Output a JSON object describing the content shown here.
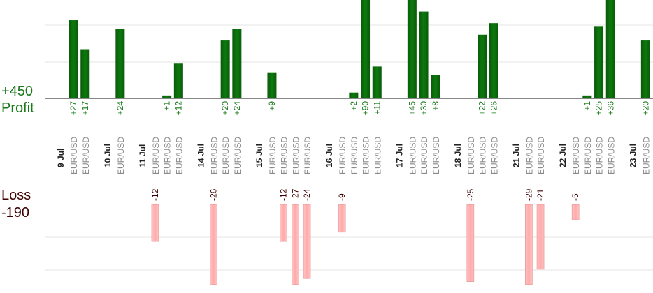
{
  "labels": {
    "profit_total": "+450",
    "profit_word": "Profit",
    "loss_word": "Loss",
    "loss_total": "-190"
  },
  "colors": {
    "profit_bar": "#0b6a0b",
    "profit_text": "#1a7a1a",
    "loss_bar": "#ffb6b6",
    "loss_text": "#3d0000",
    "axis": "#888888",
    "grid": "#e6e6e6",
    "label_grey": "#8a8a8a"
  },
  "chart_data": {
    "type": "bar",
    "title": "",
    "pair_label": "EUR/USD",
    "profit_scale_max": 34,
    "loss_scale_max": 26,
    "days": [
      {
        "date": "9 Jul",
        "trades": [
          27,
          17
        ]
      },
      {
        "date": "10 Jul",
        "trades": [
          24
        ]
      },
      {
        "date": "11 Jul",
        "trades": [
          -12,
          1,
          12
        ]
      },
      {
        "date": "14 Jul",
        "trades": [
          -26,
          20,
          24
        ]
      },
      {
        "date": "15 Jul",
        "trades": [
          9,
          -12,
          -27,
          -24
        ]
      },
      {
        "date": "16 Jul",
        "trades": [
          -9,
          2,
          90,
          11
        ]
      },
      {
        "date": "17 Jul",
        "trades": [
          45,
          30,
          8
        ]
      },
      {
        "date": "18 Jul",
        "trades": [
          -25,
          22,
          26
        ]
      },
      {
        "date": "21 Jul",
        "trades": [
          -29,
          -21
        ]
      },
      {
        "date": "22 Jul",
        "trades": [
          -5,
          1,
          25,
          36
        ]
      },
      {
        "date": "23 Jul",
        "trades": [
          20
        ]
      }
    ]
  }
}
